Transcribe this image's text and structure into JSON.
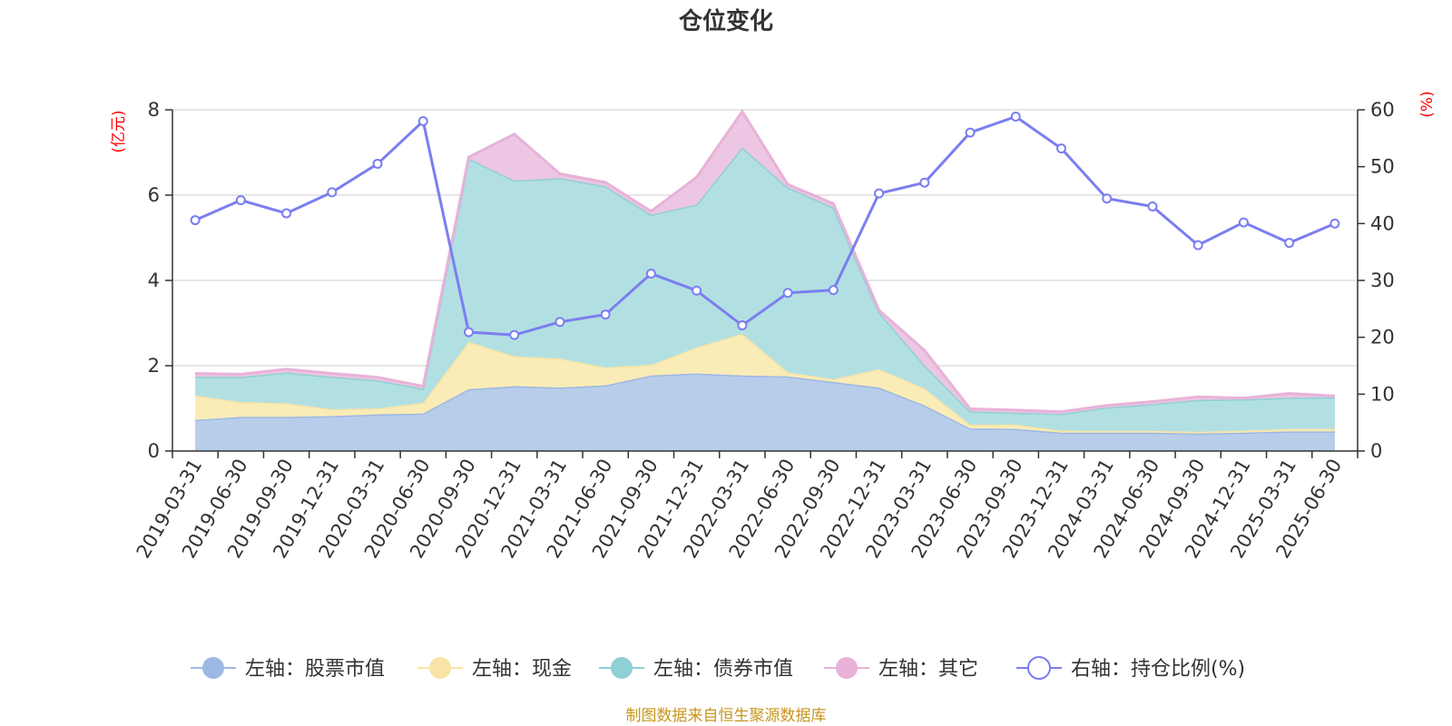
{
  "chart_data": {
    "type": "area",
    "title": "仓位变化",
    "source": "制图数据来自恒生聚源数据库",
    "left_axis": {
      "unit": "(亿元)",
      "ylim": [
        0,
        8
      ],
      "ticks": [
        0,
        2,
        4,
        6,
        8
      ]
    },
    "right_axis": {
      "unit": "(%)",
      "ylim": [
        0,
        60
      ],
      "ticks": [
        0,
        10,
        20,
        30,
        40,
        50,
        60
      ]
    },
    "grid": true,
    "legend_position": "bottom",
    "categories": [
      "2019-03-31",
      "2019-06-30",
      "2019-09-30",
      "2019-12-31",
      "2020-03-31",
      "2020-06-30",
      "2020-09-30",
      "2020-12-31",
      "2021-03-31",
      "2021-06-30",
      "2021-09-30",
      "2021-12-31",
      "2022-03-31",
      "2022-06-30",
      "2022-09-30",
      "2022-12-31",
      "2023-03-31",
      "2023-06-30",
      "2023-09-30",
      "2023-12-31",
      "2024-03-31",
      "2024-06-30",
      "2024-09-30",
      "2024-12-31",
      "2025-03-31",
      "2025-06-30"
    ],
    "series": [
      {
        "name": "左轴：股票市值",
        "axis": "left",
        "stacked": true,
        "color": "#9db8e2",
        "fill": "#b7cdea",
        "values": [
          0.73,
          0.8,
          0.8,
          0.82,
          0.86,
          0.88,
          1.45,
          1.52,
          1.49,
          1.54,
          1.77,
          1.82,
          1.77,
          1.75,
          1.62,
          1.49,
          1.07,
          0.53,
          0.52,
          0.43,
          0.43,
          0.43,
          0.41,
          0.43,
          0.46,
          0.46
        ]
      },
      {
        "name": "左轴：现金",
        "axis": "left",
        "stacked": true,
        "color": "#f7e4a6",
        "fill": "#faecb7",
        "values": [
          0.57,
          0.35,
          0.32,
          0.16,
          0.14,
          0.25,
          1.11,
          0.7,
          0.68,
          0.42,
          0.25,
          0.61,
          0.98,
          0.1,
          0.06,
          0.43,
          0.4,
          0.09,
          0.1,
          0.05,
          0.04,
          0.04,
          0.04,
          0.05,
          0.06,
          0.06
        ]
      },
      {
        "name": "左轴：债券市值",
        "axis": "left",
        "stacked": true,
        "color": "#8fd0d4",
        "fill": "#b2e0e2",
        "values": [
          0.44,
          0.59,
          0.72,
          0.76,
          0.66,
          0.33,
          4.3,
          4.12,
          4.23,
          4.25,
          3.52,
          3.35,
          4.37,
          4.33,
          4.03,
          1.34,
          0.54,
          0.31,
          0.28,
          0.39,
          0.55,
          0.63,
          0.75,
          0.73,
          0.73,
          0.74
        ]
      },
      {
        "name": "左轴：其它",
        "axis": "left",
        "stacked": true,
        "color": "#e8b2d9",
        "fill": "#ecc6e2",
        "values": [
          0.08,
          0.06,
          0.08,
          0.08,
          0.07,
          0.06,
          0.03,
          1.09,
          0.1,
          0.09,
          0.08,
          0.64,
          0.84,
          0.07,
          0.09,
          0.04,
          0.35,
          0.06,
          0.06,
          0.05,
          0.05,
          0.06,
          0.07,
          0.03,
          0.1,
          0.03
        ]
      },
      {
        "name": "右轴：持仓比例(%)",
        "axis": "right",
        "type": "line",
        "color": "#7b7ef0",
        "values": [
          40.6,
          44.1,
          41.8,
          45.5,
          50.5,
          58.0,
          20.9,
          20.4,
          22.7,
          24.0,
          31.2,
          28.2,
          22.1,
          27.8,
          28.3,
          45.3,
          47.2,
          56.0,
          58.8,
          53.2,
          44.4,
          43.0,
          36.2,
          40.2,
          36.6,
          40.0
        ]
      }
    ]
  }
}
